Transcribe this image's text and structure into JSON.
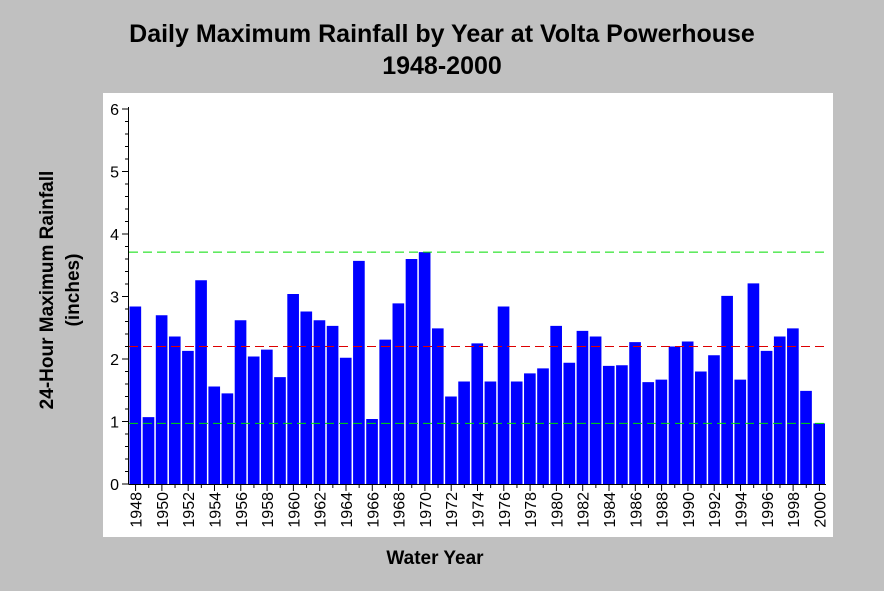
{
  "chart_data": {
    "type": "bar",
    "title": "Daily Maximum Rainfall by Year at Volta Powerhouse",
    "subtitle": "1948-2000",
    "xlabel": "Water Year",
    "ylabel_line1": "24-Hour Maximum Rainfall",
    "ylabel_line2": "(inches)",
    "ylim": [
      0,
      6
    ],
    "yticks": [
      "0",
      "1",
      "2",
      "3",
      "4",
      "5",
      "6"
    ],
    "grid": false,
    "bar_color": "#0000ff",
    "categories": [
      "1948",
      "1949",
      "1950",
      "1951",
      "1952",
      "1953",
      "1954",
      "1955",
      "1956",
      "1957",
      "1958",
      "1959",
      "1960",
      "1961",
      "1962",
      "1963",
      "1964",
      "1965",
      "1966",
      "1967",
      "1968",
      "1969",
      "1970",
      "1971",
      "1972",
      "1973",
      "1974",
      "1975",
      "1976",
      "1977",
      "1978",
      "1979",
      "1980",
      "1981",
      "1982",
      "1983",
      "1984",
      "1985",
      "1986",
      "1987",
      "1988",
      "1989",
      "1990",
      "1991",
      "1992",
      "1993",
      "1994",
      "1995",
      "1996",
      "1997",
      "1998",
      "1999",
      "2000"
    ],
    "xtick_labels": [
      "1948",
      "1950",
      "1952",
      "1954",
      "1956",
      "1958",
      "1960",
      "1962",
      "1964",
      "1966",
      "1968",
      "1970",
      "1972",
      "1974",
      "1976",
      "1978",
      "1980",
      "1982",
      "1984",
      "1986",
      "1988",
      "1990",
      "1992",
      "1994",
      "1996",
      "1998",
      "2000"
    ],
    "values": [
      2.84,
      1.07,
      2.7,
      2.36,
      2.13,
      3.26,
      1.56,
      1.45,
      2.62,
      2.04,
      2.15,
      1.71,
      3.04,
      2.76,
      2.62,
      2.53,
      2.02,
      3.57,
      1.04,
      2.31,
      2.89,
      3.6,
      3.71,
      2.49,
      1.4,
      1.64,
      2.25,
      1.64,
      2.84,
      1.64,
      1.77,
      1.85,
      2.53,
      1.94,
      2.45,
      2.36,
      1.89,
      1.9,
      2.27,
      1.63,
      1.67,
      2.2,
      2.28,
      1.8,
      2.06,
      3.01,
      1.67,
      3.21,
      2.13,
      2.36,
      2.49,
      1.49,
      0.97
    ],
    "reference_lines": [
      {
        "value": 3.71,
        "color": "#00dd00"
      },
      {
        "value": 2.2,
        "color": "#dd0000"
      },
      {
        "value": 0.97,
        "color": "#00dd00"
      }
    ]
  }
}
